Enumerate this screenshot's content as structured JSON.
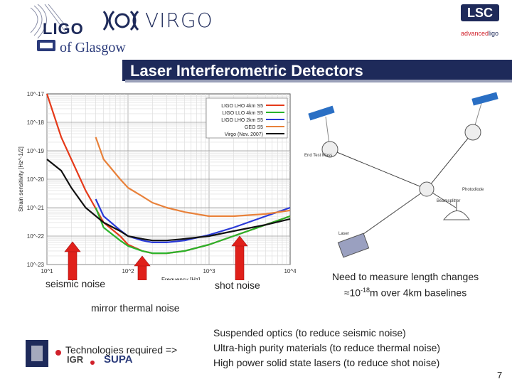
{
  "header": {
    "ligo_logo": "LIGO",
    "glasgow_logo": "of Glasgow",
    "virgo_logo": "VIRGO",
    "lsc_logo": "LSC",
    "advanced_ligo_a": "advanced",
    "advanced_ligo_b": "ligo"
  },
  "slide": {
    "title": "Laser Interferometric Detectors",
    "page_number": "7"
  },
  "chart_labels": {
    "seismic": "seismic noise",
    "mirror_thermal": "mirror thermal noise",
    "shot": "shot noise"
  },
  "diagram": {
    "end_test_mass": "End Test Mass",
    "photodiode": "Photodiode",
    "beamsplitter": "Beamsplitter",
    "laser": "Laser"
  },
  "need": {
    "line1": "Need to measure length changes",
    "prefix": "≈10",
    "exp": "-18",
    "rest": "m over 4km baselines"
  },
  "tech": {
    "required": "Technologies required =>",
    "items": [
      "Suspended optics (to reduce seismic noise)",
      "Ultra-high purity materials (to reduce thermal noise)",
      "High power solid state lasers (to reduce shot noise)"
    ],
    "logo_igr": "IGR",
    "logo_supa": "SUPA"
  },
  "chart_data": {
    "type": "line",
    "xlabel": "Frequency [Hz]",
    "ylabel": "Strain sensitivity [Hz^-1/2]",
    "x_scale": "log",
    "y_scale": "log",
    "xlim": [
      10,
      10000
    ],
    "ylim": [
      1e-23,
      1e-17
    ],
    "x_ticks": [
      "10^1",
      "10^2",
      "10^3",
      "10^4"
    ],
    "y_ticks": [
      "10^-17",
      "10^-18",
      "10^-19",
      "10^-20",
      "10^-21",
      "10^-22",
      "10^-23"
    ],
    "grid": true,
    "legend_position": "top-right",
    "series": [
      {
        "name": "LIGO LHO 4km S5",
        "color": "#e53a1a",
        "x": [
          10,
          15,
          20,
          30,
          50,
          80,
          100,
          150,
          200,
          300,
          500,
          1000,
          2000,
          5000,
          10000
        ],
        "y": [
          1e-17,
          3e-19,
          5e-20,
          4e-21,
          3e-22,
          1e-22,
          5e-23,
          3e-23,
          2.5e-23,
          2.5e-23,
          3e-23,
          5e-23,
          1e-22,
          2.5e-22,
          5e-22
        ]
      },
      {
        "name": "LIGO LLO 4km S5",
        "color": "#2ab32a",
        "x": [
          40,
          50,
          80,
          100,
          150,
          200,
          300,
          500,
          1000,
          2000,
          5000,
          10000
        ],
        "y": [
          1e-21,
          2e-22,
          7e-23,
          4.5e-23,
          3e-23,
          2.5e-23,
          2.5e-23,
          3e-23,
          5e-23,
          1e-22,
          2.5e-22,
          5e-22
        ]
      },
      {
        "name": "LIGO LHO 2km S5",
        "color": "#2a3ad8",
        "x": [
          40,
          50,
          80,
          100,
          150,
          200,
          300,
          500,
          1000,
          2000,
          5000,
          10000
        ],
        "y": [
          2e-21,
          5e-22,
          1.6e-22,
          1e-22,
          7e-23,
          6e-23,
          6e-23,
          7e-23,
          1.1e-22,
          2e-22,
          5e-22,
          1e-21
        ]
      },
      {
        "name": "GEO S5",
        "color": "#e8813a",
        "x": [
          40,
          50,
          80,
          100,
          150,
          200,
          300,
          500,
          1000,
          2000,
          5000,
          10000
        ],
        "y": [
          3e-19,
          5e-20,
          1e-20,
          5e-21,
          2.5e-21,
          1.5e-21,
          1e-21,
          7e-22,
          5e-22,
          5e-22,
          6e-22,
          8e-22
        ]
      },
      {
        "name": "Virgo (Nov. 2007)",
        "color": "#111111",
        "x": [
          10,
          15,
          20,
          30,
          50,
          80,
          100,
          150,
          200,
          300,
          500,
          1000,
          2000,
          5000,
          10000
        ],
        "y": [
          5e-20,
          2e-20,
          5e-21,
          1e-21,
          3e-22,
          1.5e-22,
          1e-22,
          8e-23,
          7e-23,
          7e-23,
          8e-23,
          1e-22,
          1.5e-22,
          2.5e-22,
          4e-22
        ]
      }
    ]
  }
}
